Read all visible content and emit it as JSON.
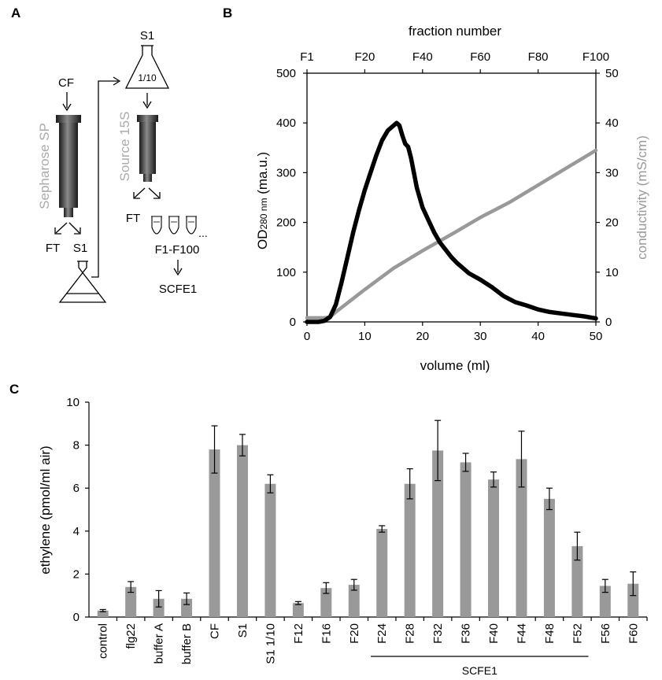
{
  "panel_labels": {
    "a": "A",
    "b": "B",
    "c": "C"
  },
  "colors": {
    "black": "#000000",
    "gray": "#999999",
    "bar": "#999999",
    "light_gray": "#aaaaaa"
  },
  "panel_a": {
    "cf_label": "CF",
    "column1_label": "Sepharose SP",
    "ft1_label": "FT",
    "s1_label": "S1",
    "s1_top_label": "S1",
    "dilution_label": "1/10",
    "column2_label": "Source 15S",
    "ft2_label": "FT",
    "ellipsis": "...",
    "fractions_label": "F1-F100",
    "result_label": "SCFE1"
  },
  "chart_data": [
    {
      "type": "line",
      "top_axis_label": "fraction number",
      "top_ticks": [
        "F1",
        "F20",
        "F40",
        "F60",
        "F80",
        "F100"
      ],
      "xlabel": "volume (ml)",
      "ylabel": "OD",
      "ylabel_sub": "280 nm",
      "ylabel_unit": " (ma.u.)",
      "y2label": "conductivity (mS/cm)",
      "xlim": [
        0,
        50
      ],
      "ylim": [
        0,
        500
      ],
      "y2lim": [
        0,
        50
      ],
      "x_ticks": [
        0,
        10,
        20,
        30,
        40,
        50
      ],
      "y_ticks": [
        0,
        100,
        200,
        300,
        400,
        500
      ],
      "y2_ticks": [
        0,
        10,
        20,
        30,
        40,
        50
      ],
      "series": [
        {
          "axis": "left",
          "color": "#000000",
          "x": [
            0,
            2,
            3,
            4,
            5,
            6,
            7,
            8,
            9,
            10,
            11,
            12,
            13,
            14,
            15,
            15.5,
            16,
            16.5,
            17,
            17.5,
            18,
            19,
            20,
            21,
            22,
            23,
            24,
            25,
            26,
            27,
            28,
            30,
            32,
            34,
            36,
            38,
            40,
            42,
            44,
            46,
            48,
            50
          ],
          "y": [
            0,
            0,
            2,
            10,
            35,
            80,
            130,
            180,
            225,
            265,
            300,
            335,
            365,
            385,
            395,
            400,
            395,
            375,
            358,
            352,
            330,
            270,
            230,
            205,
            180,
            160,
            145,
            130,
            118,
            108,
            98,
            85,
            70,
            52,
            40,
            33,
            25,
            20,
            17,
            14,
            11,
            7
          ]
        },
        {
          "axis": "right",
          "color": "#999999",
          "x": [
            0,
            3,
            4,
            5,
            10,
            15,
            20,
            25,
            30,
            35,
            40,
            45,
            50
          ],
          "y": [
            0.8,
            0.8,
            1,
            2,
            6.5,
            10.8,
            14.3,
            17.6,
            21,
            24,
            27.5,
            31,
            34.5
          ]
        }
      ]
    },
    {
      "type": "bar",
      "ylabel": "ethylene (pmol/ml air)",
      "ylim": [
        0,
        10
      ],
      "y_ticks": [
        0,
        2,
        4,
        6,
        8,
        10
      ],
      "categories": [
        "control",
        "flg22",
        "buffer A",
        "buffer B",
        "CF",
        "S1",
        "S1 1/10",
        "F12",
        "F16",
        "F20",
        "F24",
        "F28",
        "F32",
        "F36",
        "F40",
        "F44",
        "F48",
        "F52",
        "F56",
        "F60"
      ],
      "values": [
        0.3,
        1.4,
        0.85,
        0.85,
        7.8,
        8.0,
        6.2,
        0.65,
        1.35,
        1.5,
        4.1,
        6.2,
        7.75,
        7.2,
        6.4,
        7.35,
        5.5,
        3.3,
        1.45,
        1.55
      ],
      "errors": [
        0.05,
        0.25,
        0.38,
        0.27,
        1.1,
        0.5,
        0.42,
        0.07,
        0.25,
        0.25,
        0.15,
        0.7,
        1.4,
        0.42,
        0.35,
        1.3,
        0.5,
        0.65,
        0.3,
        0.55
      ],
      "bracket_label": "SCFE1",
      "bracket_from": "F24",
      "bracket_to": "F52"
    }
  ]
}
